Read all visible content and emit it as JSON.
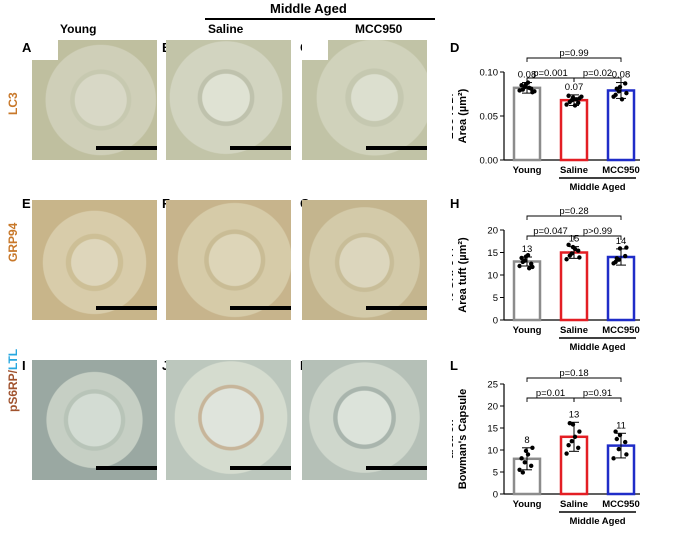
{
  "headers": {
    "group": "Middle Aged",
    "col_young": "Young",
    "col_saline": "Saline",
    "col_mcc": "MCC950"
  },
  "rows": [
    {
      "label": "LC3",
      "label_color": "#c8782a"
    },
    {
      "label": "GRP94",
      "label_color": "#c8782a"
    },
    {
      "label_part1": "pS6RP/",
      "label_part2": "LTL",
      "label_color1": "#a0522d",
      "label_color2": "#28a8e0"
    }
  ],
  "panel_letters": [
    "A",
    "B",
    "C",
    "D",
    "E",
    "F",
    "G",
    "H",
    "I",
    "J",
    "K",
    "L"
  ],
  "colors": {
    "young": "#8c8c8c",
    "saline": "#e31e24",
    "mcc": "#1f2cc8"
  },
  "chart_data": [
    {
      "type": "bar",
      "panel": "D",
      "ylabel_line1": "LC3  IOD/",
      "ylabel_line2": "Area (µm²)",
      "categories": [
        "Young",
        "Saline",
        "MCC950"
      ],
      "group_label": "Middle Aged",
      "values": [
        0.082,
        0.068,
        0.079
      ],
      "value_labels": [
        "0.08",
        "0.07",
        "0.08"
      ],
      "errors": [
        0.006,
        0.006,
        0.009
      ],
      "ylim": [
        0,
        0.1
      ],
      "yticks": [
        "0.00",
        "0.05",
        "0.10"
      ],
      "ytick_values": [
        0,
        0.05,
        0.1
      ],
      "comparisons": [
        {
          "from": 0,
          "to": 2,
          "label": "p=0.99"
        },
        {
          "from": 0,
          "to": 1,
          "label": "p=0.001"
        },
        {
          "from": 1,
          "to": 2,
          "label": "p=0.02"
        }
      ],
      "points": [
        [
          0.079,
          0.083,
          0.086,
          0.081,
          0.077,
          0.085,
          0.08,
          0.088,
          0.082,
          0.078
        ],
        [
          0.063,
          0.068,
          0.071,
          0.065,
          0.07,
          0.073,
          0.066,
          0.062,
          0.069,
          0.072
        ],
        [
          0.072,
          0.078,
          0.083,
          0.087,
          0.076,
          0.074,
          0.081,
          0.069
        ]
      ]
    },
    {
      "type": "bar",
      "panel": "H",
      "ylabel_line1": "% GRP94 /",
      "ylabel_line2": "Area tuft (µm²)",
      "categories": [
        "Young",
        "Saline",
        "MCC950"
      ],
      "group_label": "Middle Aged",
      "values": [
        13,
        15,
        14
      ],
      "value_labels": [
        "13",
        "15",
        "14"
      ],
      "errors": [
        1.0,
        1.3,
        1.8
      ],
      "ylim": [
        0,
        20
      ],
      "yticks": [
        "0",
        "5",
        "10",
        "15",
        "20"
      ],
      "ytick_values": [
        0,
        5,
        10,
        15,
        20
      ],
      "comparisons": [
        {
          "from": 0,
          "to": 2,
          "label": "p=0.28"
        },
        {
          "from": 0,
          "to": 1,
          "label": "p=0.047"
        },
        {
          "from": 1,
          "to": 2,
          "label": "p>0.99"
        }
      ],
      "points": [
        [
          12.0,
          13.2,
          14.1,
          12.5,
          11.8,
          13.8,
          12.9,
          14.4,
          11.5
        ],
        [
          13.5,
          14.8,
          16.2,
          15.4,
          13.9,
          16.7,
          14.3,
          15.8
        ],
        [
          12.6,
          13.4,
          15.9,
          14.2,
          16.1,
          12.9,
          13.7
        ]
      ]
    },
    {
      "type": "bar",
      "panel": "L",
      "ylabel_line1": "% of pS6RP⁺",
      "ylabel_line2": "area on",
      "ylabel_line3": "Bowman's Capsule",
      "categories": [
        "Young",
        "Saline",
        "MCC950"
      ],
      "group_label": "Middle Aged",
      "values": [
        8,
        13,
        11
      ],
      "value_labels": [
        "8",
        "13",
        "11"
      ],
      "errors": [
        2.5,
        3.3,
        2.8
      ],
      "ylim": [
        0,
        25
      ],
      "yticks": [
        "0",
        "5",
        "10",
        "15",
        "20",
        "25"
      ],
      "ytick_values": [
        0,
        5,
        10,
        15,
        20,
        25
      ],
      "comparisons": [
        {
          "from": 0,
          "to": 2,
          "label": "p=0.18"
        },
        {
          "from": 0,
          "to": 1,
          "label": "p=0.01"
        },
        {
          "from": 1,
          "to": 2,
          "label": "p=0.91"
        }
      ],
      "points": [
        [
          5.5,
          7.2,
          9.8,
          6.4,
          10.5,
          8.1,
          4.9,
          9.0
        ],
        [
          9.2,
          12.0,
          15.8,
          10.5,
          14.2,
          11.1,
          16.1,
          13.0
        ],
        [
          8.1,
          10.2,
          13.4,
          11.8,
          9.0,
          14.2,
          12.5
        ]
      ]
    }
  ]
}
